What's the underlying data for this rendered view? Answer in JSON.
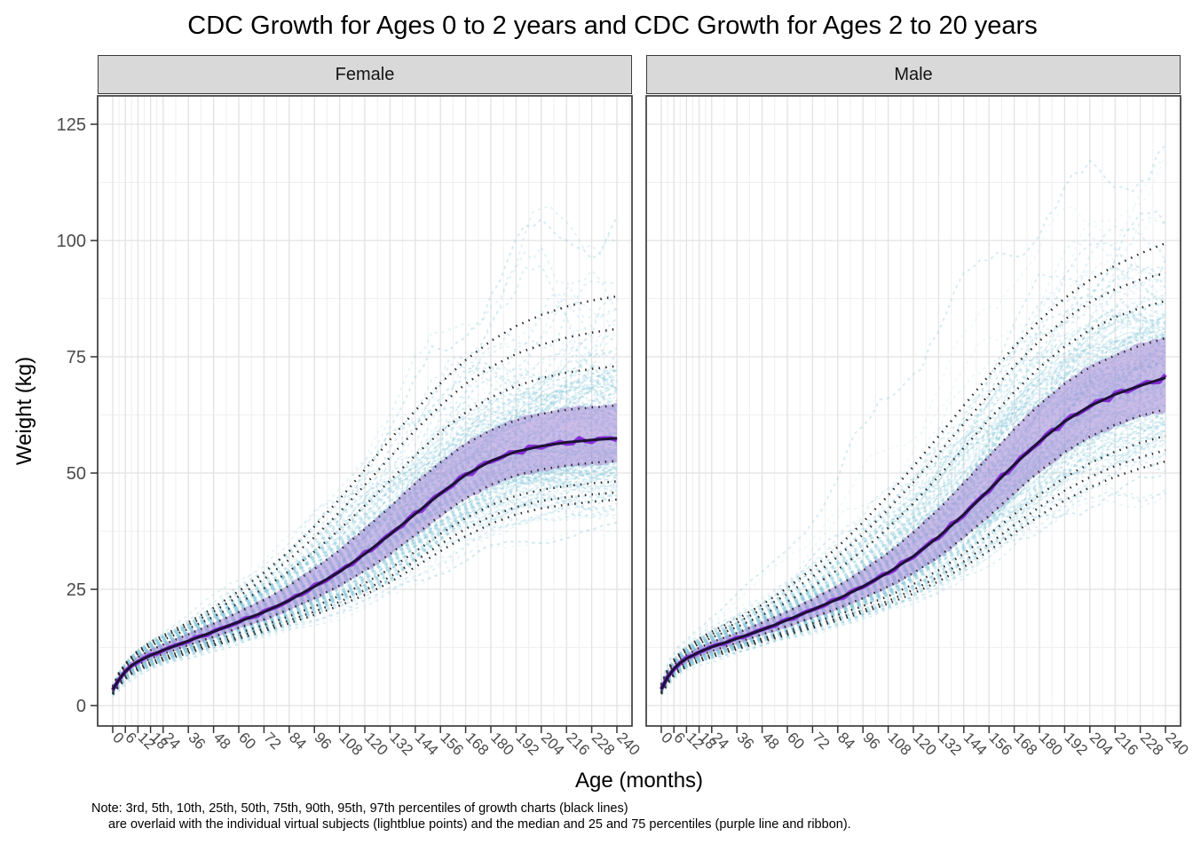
{
  "note": {
    "line1": "Note: 3rd, 5th, 10th, 25th, 50th, 75th, 90th, 95th, 97th percentiles of growth charts (black lines)",
    "line2": "are overlaid with the individual virtual subjects (lightblue points) and the median and 25 and 75 percentiles (purple line and ribbon)."
  },
  "colors": {
    "strip_bg": "#d9d9d9",
    "panel_border": "#3c3c3c",
    "grid_major": "#e2e2e2",
    "grid_minor": "#f0f0f0",
    "subjects": "#8ecbdd",
    "ribbon": "#a98fd8",
    "median_wiggle": "#8123d8",
    "median_dark": "#1d1135",
    "percentile_dots": "#2b2b2b",
    "tick_text": "#4a4a4a",
    "axis_tick": "#333333"
  },
  "chart_data": {
    "type": "line",
    "title": "CDC Growth for Ages 0 to 2 years and CDC Growth for Ages 2 to 20 years",
    "xlabel": "Age (months)",
    "ylabel": "Weight (kg)",
    "x_ticks": [
      0,
      6,
      12,
      18,
      24,
      36,
      48,
      60,
      72,
      84,
      96,
      108,
      120,
      132,
      144,
      156,
      168,
      180,
      192,
      204,
      216,
      228,
      240
    ],
    "y_ticks": [
      0,
      25,
      50,
      75,
      100,
      125
    ],
    "xlim": [
      -7.3,
      250
    ],
    "ylim": [
      -4.4,
      131.1
    ],
    "grid": true,
    "legend_position": "none",
    "layers": {
      "percentile_lines": "3rd, 5th, 10th, 25th, 50th, 75th, 90th, 95th, 97th percentiles of CDC growth charts (black dotted lines)",
      "subjects": "individual virtual subjects (lightblue points)",
      "median_and_ribbon": "median and 25 and 75 percentiles of virtual subjects (purple line and ribbon)"
    },
    "series_labels": [
      "3rd",
      "5th",
      "10th",
      "25th",
      "50th",
      "75th",
      "90th",
      "95th",
      "97th"
    ],
    "ages": [
      0,
      3,
      6,
      9,
      12,
      18,
      24,
      36,
      48,
      60,
      72,
      84,
      96,
      108,
      120,
      132,
      144,
      156,
      168,
      180,
      192,
      204,
      216,
      228,
      240
    ],
    "facets": [
      {
        "label": "Female",
        "percentiles": [
          [
            2.4,
            4.2,
            5.7,
            6.8,
            7.6,
            8.7,
            9.7,
            11.3,
            12.9,
            14.4,
            16.0,
            17.7,
            19.5,
            21.5,
            23.8,
            26.5,
            29.8,
            33.2,
            36.4,
            39.1,
            41.1,
            42.4,
            43.2,
            43.8,
            44.3
          ],
          [
            2.5,
            4.4,
            6.0,
            7.1,
            7.9,
            9.0,
            10.0,
            11.7,
            13.3,
            14.9,
            16.5,
            18.3,
            20.2,
            22.3,
            24.8,
            27.7,
            31.1,
            34.7,
            38.0,
            40.7,
            42.7,
            44.0,
            44.8,
            45.4,
            45.8
          ],
          [
            2.7,
            4.7,
            6.3,
            7.4,
            8.2,
            9.4,
            10.4,
            12.2,
            13.9,
            15.6,
            17.3,
            19.2,
            21.3,
            23.6,
            26.3,
            29.4,
            33.1,
            36.9,
            40.3,
            43.1,
            45.1,
            46.4,
            47.2,
            47.8,
            48.2
          ],
          [
            3.0,
            5.1,
            6.8,
            8.0,
            8.8,
            10.1,
            11.1,
            13.0,
            14.8,
            16.7,
            18.5,
            20.7,
            23.1,
            25.8,
            29.0,
            32.6,
            36.7,
            40.9,
            44.6,
            47.5,
            49.5,
            50.8,
            51.6,
            52.2,
            52.6
          ],
          [
            3.4,
            5.6,
            7.3,
            8.6,
            9.5,
            10.8,
            11.9,
            13.9,
            15.9,
            18.0,
            20.1,
            22.6,
            25.6,
            28.8,
            32.6,
            36.8,
            41.2,
            45.6,
            49.6,
            52.6,
            54.6,
            55.8,
            56.6,
            57.1,
            57.5
          ],
          [
            3.7,
            6.2,
            8.0,
            9.4,
            10.4,
            11.9,
            13.1,
            15.3,
            17.6,
            20.1,
            22.7,
            25.8,
            29.4,
            33.4,
            37.9,
            42.7,
            47.7,
            52.3,
            56.2,
            59.2,
            61.3,
            62.7,
            63.6,
            64.1,
            64.5
          ],
          [
            3.9,
            6.6,
            8.5,
            10.0,
            11.1,
            12.8,
            14.1,
            16.5,
            19.1,
            22.0,
            25.2,
            28.9,
            33.1,
            37.9,
            43.0,
            48.4,
            53.8,
            58.8,
            63.0,
            66.3,
            68.7,
            70.4,
            71.6,
            72.4,
            73.0
          ],
          [
            4.0,
            6.9,
            8.8,
            10.3,
            11.5,
            13.3,
            14.7,
            17.3,
            20.2,
            23.5,
            27.2,
            31.4,
            36.2,
            41.6,
            47.4,
            53.4,
            59.2,
            64.5,
            69.2,
            72.8,
            75.6,
            77.6,
            79.1,
            80.2,
            81.0
          ],
          [
            4.2,
            7.1,
            9.0,
            10.6,
            11.8,
            13.7,
            15.1,
            17.9,
            21.0,
            24.6,
            28.6,
            33.2,
            38.5,
            44.4,
            50.7,
            57.2,
            63.4,
            69.3,
            74.3,
            78.4,
            81.6,
            84.0,
            85.8,
            87.1,
            88.0
          ]
        ]
      },
      {
        "label": "Male",
        "percentiles": [
          [
            2.5,
            4.7,
            6.4,
            7.5,
            8.3,
            9.5,
            10.4,
            12.1,
            13.7,
            15.2,
            16.7,
            18.3,
            20.0,
            21.9,
            24.1,
            26.7,
            29.8,
            33.3,
            37.1,
            40.8,
            44.1,
            46.9,
            49.2,
            51.0,
            52.5
          ],
          [
            2.6,
            4.9,
            6.6,
            7.7,
            8.5,
            9.7,
            10.7,
            12.4,
            14.0,
            15.5,
            17.1,
            18.8,
            20.5,
            22.5,
            24.9,
            27.7,
            31.0,
            34.8,
            38.8,
            42.7,
            46.2,
            49.1,
            51.5,
            53.4,
            54.9
          ],
          [
            2.8,
            5.2,
            6.9,
            8.0,
            8.8,
            10.1,
            11.0,
            12.8,
            14.4,
            16.0,
            17.7,
            19.5,
            21.4,
            23.5,
            26.1,
            29.1,
            32.7,
            36.8,
            41.1,
            45.3,
            49.0,
            52.1,
            54.6,
            56.5,
            58.0
          ],
          [
            3.1,
            5.6,
            7.4,
            8.6,
            9.4,
            10.7,
            11.7,
            13.5,
            15.3,
            17.1,
            18.9,
            20.9,
            23.1,
            25.6,
            28.5,
            32.0,
            36.2,
            40.8,
            45.7,
            50.4,
            54.5,
            57.8,
            60.4,
            62.3,
            63.7
          ],
          [
            3.5,
            6.1,
            7.9,
            9.2,
            10.1,
            11.5,
            12.6,
            14.4,
            16.3,
            18.4,
            20.6,
            22.9,
            25.6,
            28.6,
            32.1,
            36.3,
            41.1,
            46.4,
            51.8,
            56.8,
            61.1,
            64.4,
            66.9,
            68.8,
            70.5
          ],
          [
            3.9,
            6.7,
            8.6,
            9.9,
            10.9,
            12.4,
            13.6,
            15.6,
            17.8,
            20.2,
            22.8,
            25.7,
            29.0,
            32.8,
            37.2,
            42.2,
            47.8,
            53.6,
            59.4,
            64.7,
            69.2,
            72.7,
            75.3,
            77.4,
            79.0
          ],
          [
            4.2,
            7.2,
            9.2,
            10.6,
            11.6,
            13.3,
            14.6,
            16.9,
            19.4,
            22.3,
            25.5,
            29.2,
            33.4,
            38.2,
            43.5,
            49.3,
            55.4,
            61.5,
            67.4,
            72.7,
            77.2,
            80.8,
            83.5,
            85.5,
            87.0
          ],
          [
            4.4,
            7.5,
            9.6,
            11.0,
            12.1,
            13.9,
            15.3,
            17.8,
            20.7,
            24.0,
            27.7,
            32.0,
            36.8,
            42.2,
            48.0,
            54.2,
            60.6,
            66.9,
            73.0,
            78.4,
            83.0,
            86.7,
            89.5,
            91.6,
            93.0
          ],
          [
            4.6,
            7.8,
            9.9,
            11.4,
            12.5,
            14.4,
            15.9,
            18.6,
            21.7,
            25.3,
            29.4,
            34.1,
            39.4,
            45.2,
            51.4,
            57.9,
            64.5,
            71.0,
            77.2,
            82.8,
            87.6,
            91.5,
            94.6,
            97.2,
            99.4
          ]
        ]
      }
    ]
  }
}
